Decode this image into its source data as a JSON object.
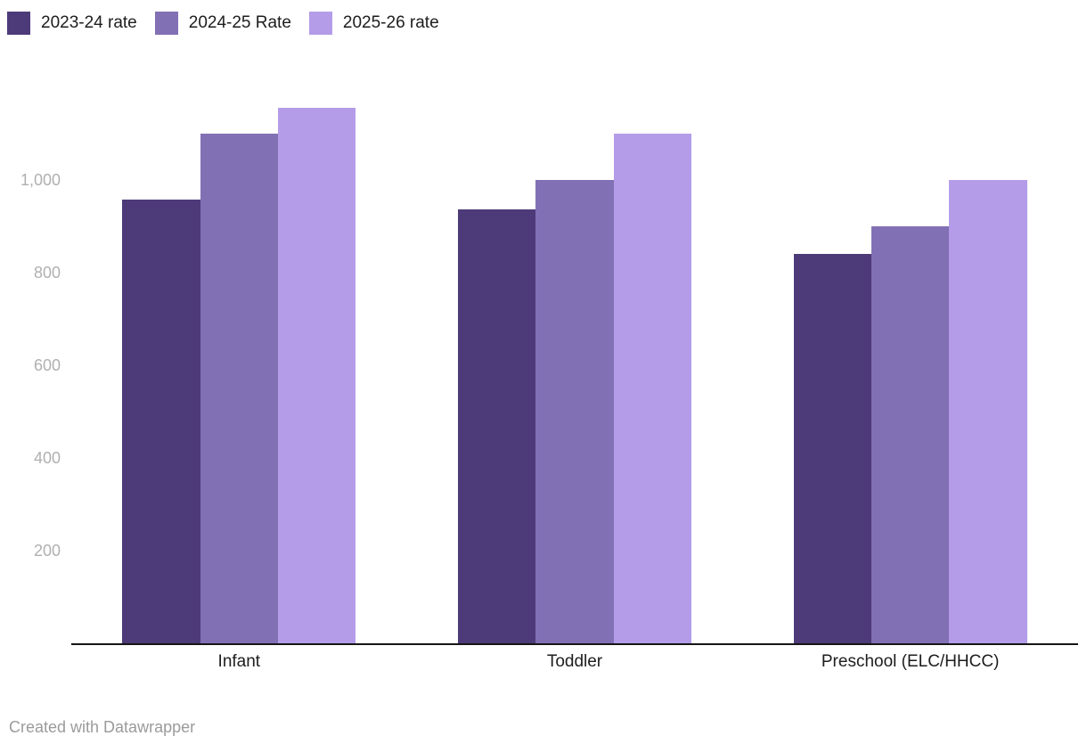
{
  "chart_data": {
    "type": "bar",
    "title": "",
    "categories": [
      "Infant",
      "Toddler",
      "Preschool (ELC/HHCC)"
    ],
    "series": [
      {
        "name": "2023-24 rate",
        "color": "#4d3a78",
        "values": [
          957.5,
          937.5,
          840
        ]
      },
      {
        "name": "2024-25 Rate",
        "color": "#8270b5",
        "values": [
          1100,
          1000,
          900
        ]
      },
      {
        "name": "2025-26 rate",
        "color": "#b49ce8",
        "values": [
          1155,
          1100,
          1000
        ]
      }
    ],
    "y_ticks": [
      200,
      400,
      600,
      800,
      1000
    ],
    "y_tick_labels": [
      "200",
      "400",
      "600",
      "800",
      "1,000"
    ],
    "ylim": [
      0,
      1200
    ],
    "grid": false,
    "legend_position": "top-left",
    "axis_color": "#161616",
    "tick_label_color": "#b0b0b0"
  },
  "footer": {
    "credit": "Created with Datawrapper"
  }
}
